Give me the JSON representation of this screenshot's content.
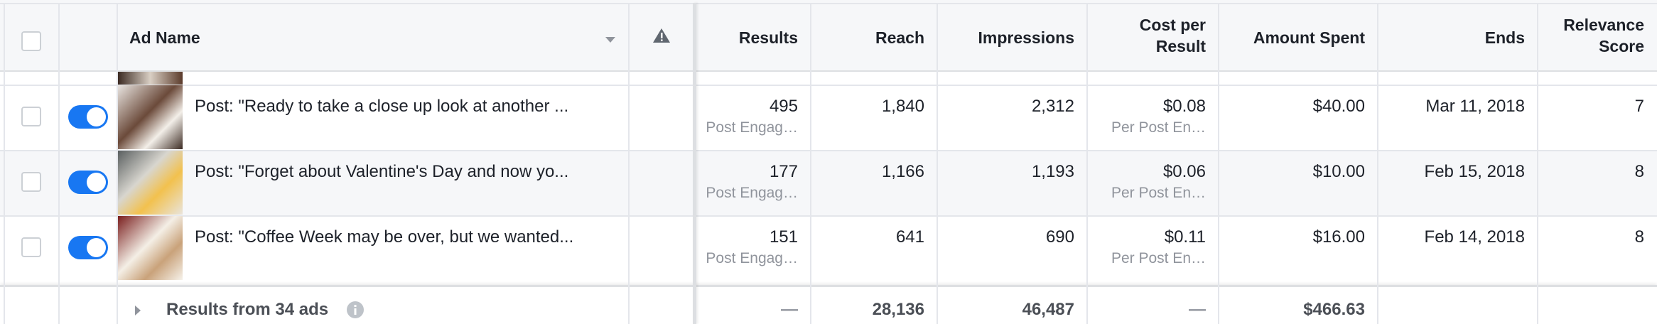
{
  "header": {
    "columns": [
      "Ad Name",
      "Results",
      "Reach",
      "Impressions",
      "Cost per Result",
      "Amount Spent",
      "Ends",
      "Relevance Score"
    ]
  },
  "rows": [
    {
      "name": "Post: \"Ready to take a close up look at another ...",
      "results": "495",
      "results_label": "Post Engag…",
      "reach": "1,840",
      "impressions": "2,312",
      "cost": "$0.08",
      "cost_label": "Per Post En…",
      "amount": "$40.00",
      "ends": "Mar 11, 2018",
      "relevance": "7"
    },
    {
      "name": "Post: \"Forget about Valentine's Day and now yo...",
      "results": "177",
      "results_label": "Post Engag…",
      "reach": "1,166",
      "impressions": "1,193",
      "cost": "$0.06",
      "cost_label": "Per Post En…",
      "amount": "$10.00",
      "ends": "Feb 15, 2018",
      "relevance": "8"
    },
    {
      "name": "Post: \"Coffee Week may be over, but we wanted...",
      "results": "151",
      "results_label": "Post Engag…",
      "reach": "641",
      "impressions": "690",
      "cost": "$0.11",
      "cost_label": "Per Post En…",
      "amount": "$16.00",
      "ends": "Feb 14, 2018",
      "relevance": "8"
    }
  ],
  "footer": {
    "label": "Results from 34 ads",
    "results": "—",
    "reach": "28,136",
    "impressions": "46,487",
    "cost": "—",
    "amount": "$466.63"
  }
}
